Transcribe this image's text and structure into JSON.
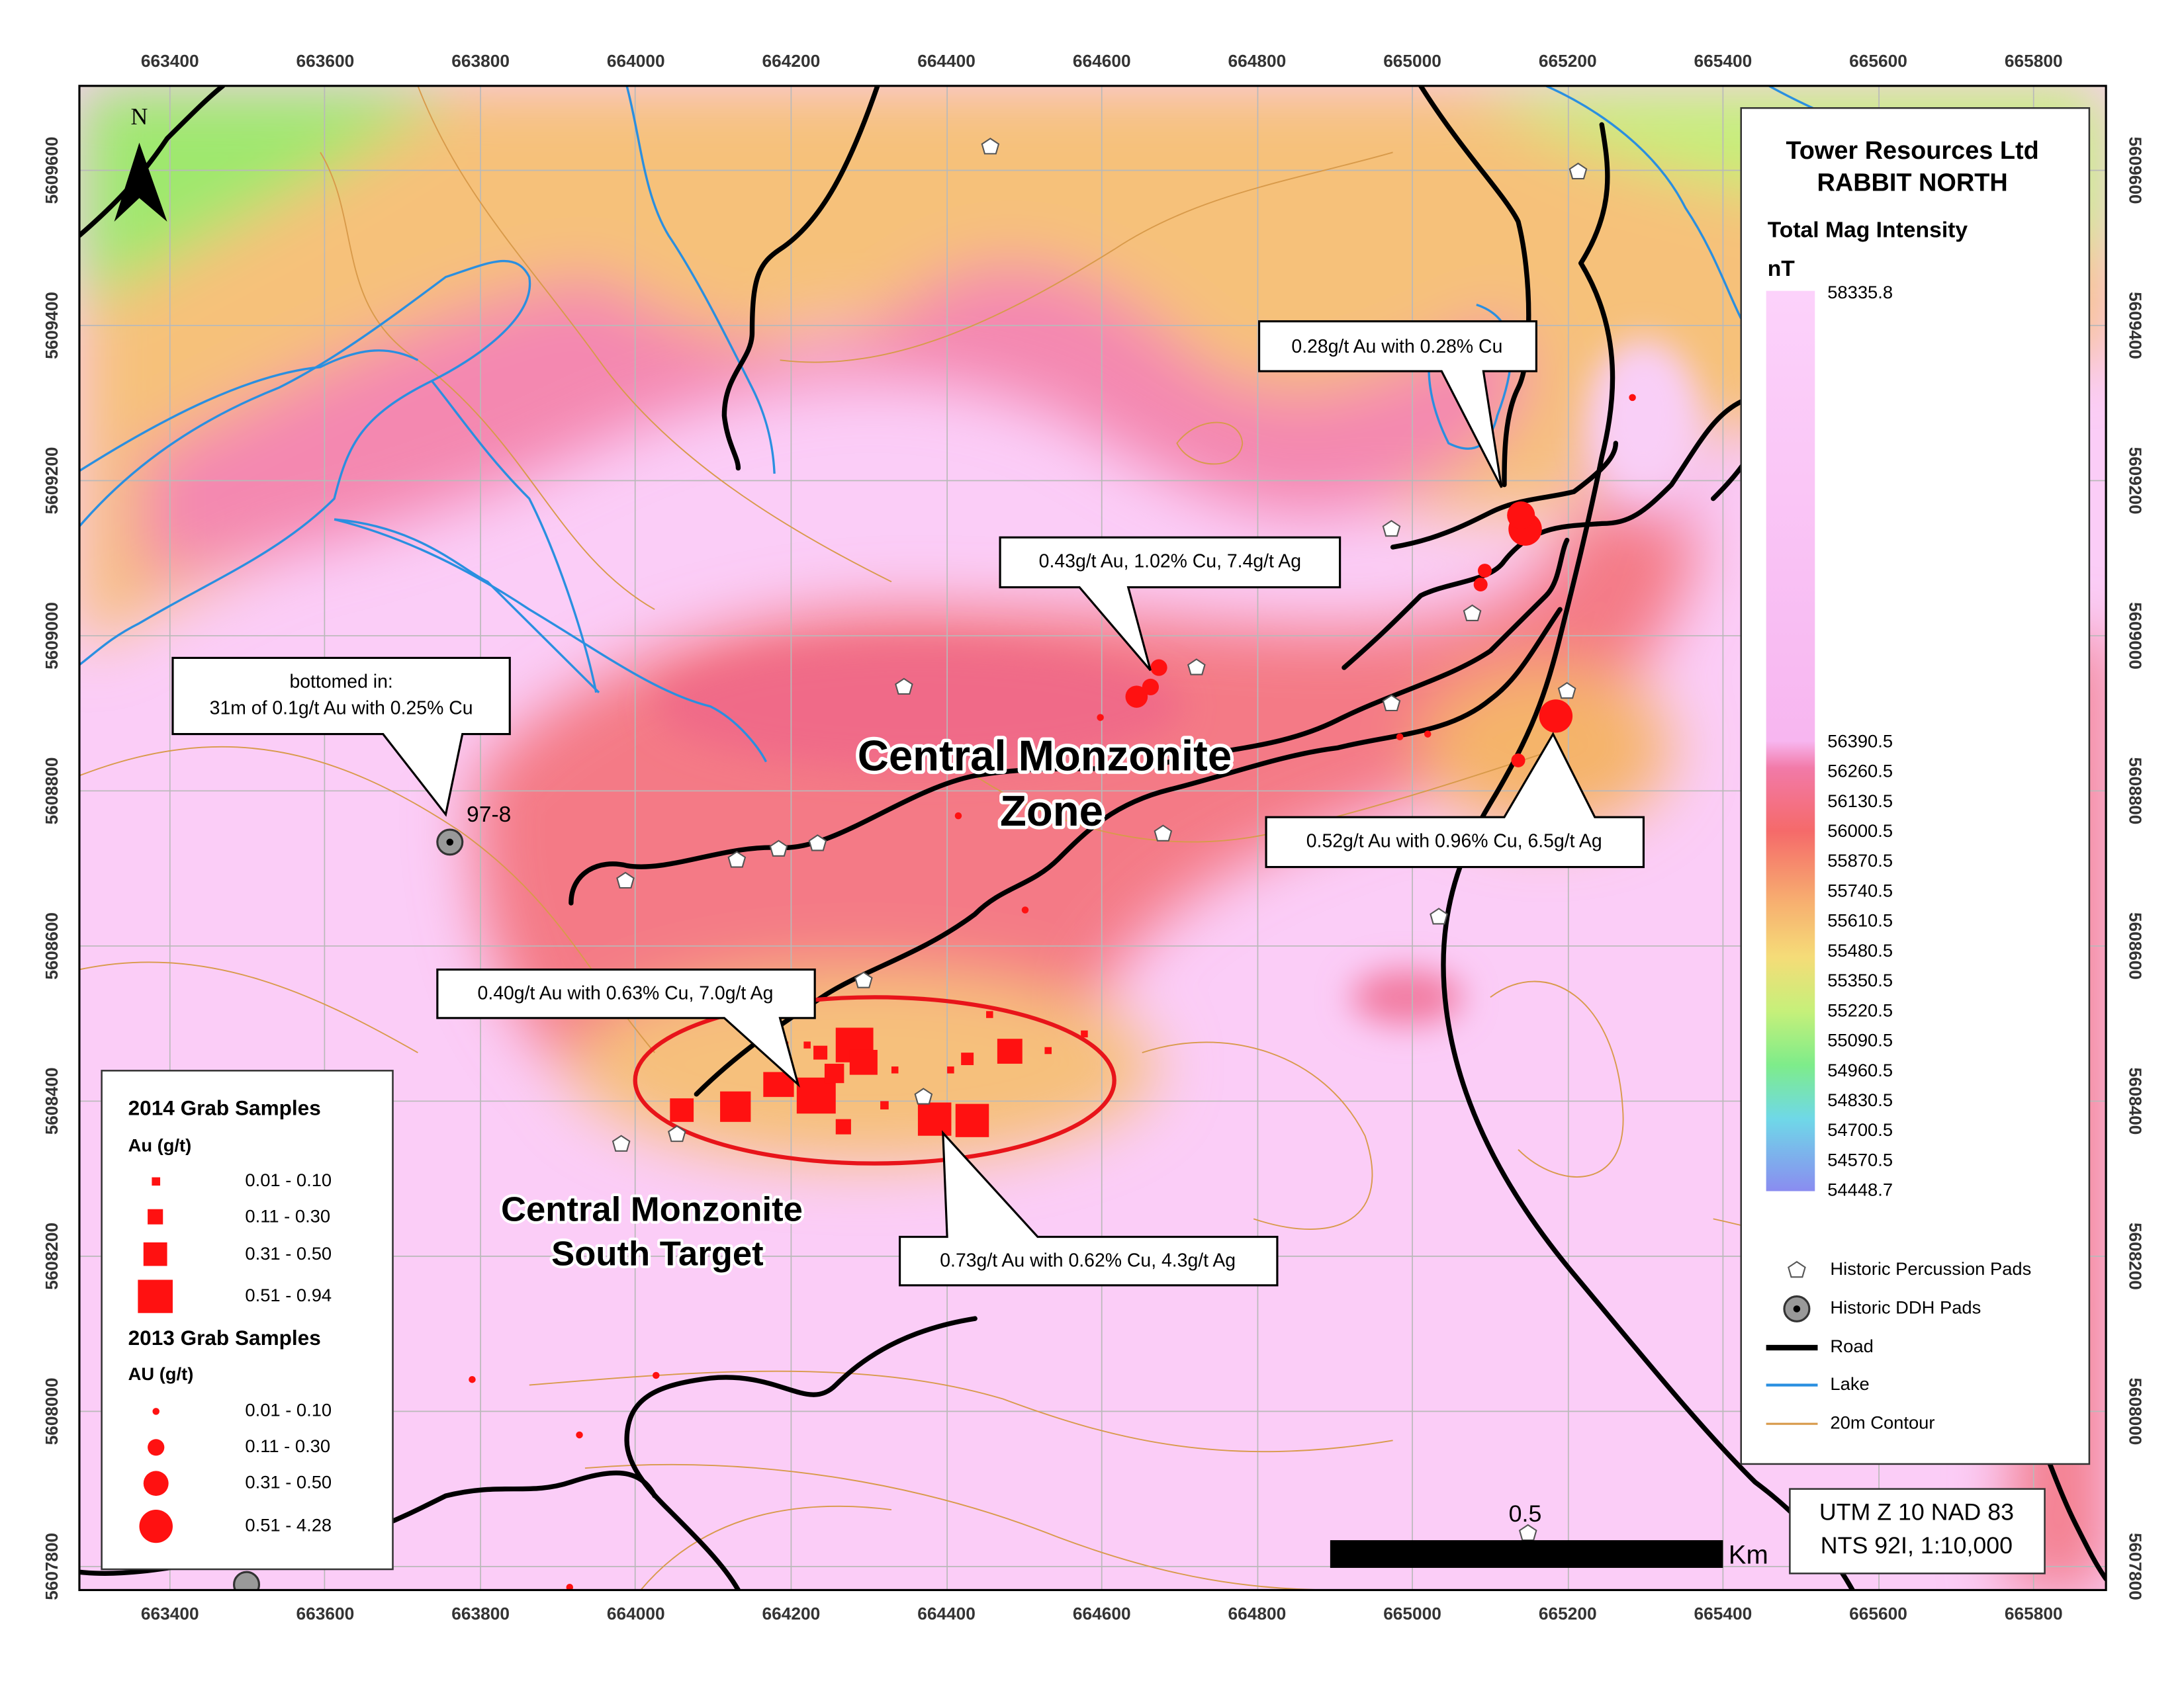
{
  "axes": {
    "eastings": [
      663400,
      663600,
      663800,
      664000,
      664200,
      664400,
      664600,
      664800,
      665000,
      665200,
      665400,
      665600,
      665800
    ],
    "northings": [
      5609600,
      5609400,
      5609200,
      5609000,
      5608800,
      5608600,
      5608400,
      5608200,
      5608000,
      5607800
    ]
  },
  "north_arrow": "N",
  "legend": {
    "company": "Tower Resources Ltd",
    "project": "RABBIT NORTH",
    "layer": "Total Mag Intensity",
    "unit": "nT",
    "color_labels": [
      "58335.8",
      "56390.5",
      "56260.5",
      "56130.5",
      "56000.5",
      "55870.5",
      "55740.5",
      "55610.5",
      "55480.5",
      "55350.5",
      "55220.5",
      "55090.5",
      "54960.5",
      "54830.5",
      "54700.5",
      "54570.5",
      "54448.7"
    ],
    "symbols": [
      "Historic Percussion Pads",
      "Historic DDH Pads",
      "Road",
      "Lake",
      "20m Contour"
    ]
  },
  "samples_legend": {
    "groups": [
      {
        "title": "2014 Grab Samples",
        "unit": "Au (g/t)",
        "classes": [
          "0.01 - 0.10",
          "0.11 - 0.30",
          "0.31 - 0.50",
          "0.51 - 0.94"
        ]
      },
      {
        "title": "2013 Grab Samples",
        "unit": "AU (g/t)",
        "classes": [
          "0.01 - 0.10",
          "0.11 - 0.30",
          "0.31 - 0.50",
          "0.51 - 4.28"
        ]
      }
    ]
  },
  "callouts": [
    "0.28g/t Au with 0.28% Cu",
    "0.43g/t Au, 1.02% Cu, 7.4g/t Ag",
    [
      "bottomed in:",
      "31m of 0.1g/t Au with 0.25% Cu"
    ],
    "0.52g/t Au with 0.96% Cu, 6.5g/t Ag",
    "0.40g/t Au with 0.63% Cu, 7.0g/t Ag",
    "0.73g/t Au with 0.62% Cu, 4.3g/t Ag"
  ],
  "drill_label": "97-8",
  "zones": [
    [
      "Central Monzonite",
      "Zone"
    ],
    [
      "Central Monzonite",
      "South Target"
    ]
  ],
  "scale": {
    "label": "0.5",
    "unit": "Km"
  },
  "projection": [
    "UTM Z 10 NAD 83",
    "NTS 92I, 1:10,000"
  ]
}
